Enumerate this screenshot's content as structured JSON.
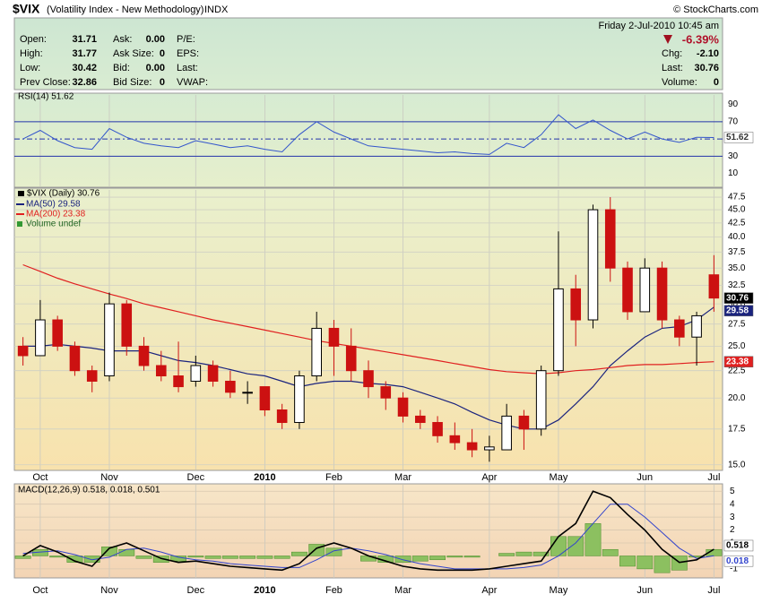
{
  "header": {
    "symbol": "$VIX",
    "name": "(Volatility Index - New Methodology)",
    "exchange": "INDX",
    "credit": "© StockCharts.com",
    "date": "Friday  2-Jul-2010  10:45 am",
    "change_pct": "-6.39%",
    "columns": [
      [
        {
          "label": "Open:",
          "value": "31.71"
        },
        {
          "label": "High:",
          "value": "31.77"
        },
        {
          "label": "Low:",
          "value": "30.42"
        },
        {
          "label": "Prev Close:",
          "value": "32.86"
        }
      ],
      [
        {
          "label": "Ask:",
          "value": "0.00"
        },
        {
          "label": "Ask Size:",
          "value": "0"
        },
        {
          "label": "Bid:",
          "value": "0.00"
        },
        {
          "label": "Bid Size:",
          "value": "0"
        }
      ],
      [
        {
          "label": "P/E:"
        },
        {
          "label": "EPS:"
        },
        {
          "label": "Last:"
        },
        {
          "label": "VWAP:"
        }
      ]
    ],
    "right": [
      {
        "label": "Chg:",
        "value": "-2.10"
      },
      {
        "label": "Last:",
        "value": "30.76"
      },
      {
        "label": "Volume:",
        "value": "0"
      }
    ]
  },
  "chart_data": [
    {
      "type": "line",
      "title": "RSI(14) 51.62",
      "ylim": [
        -5,
        101
      ],
      "yticks": [
        10,
        30,
        50,
        70,
        90
      ],
      "series": [
        {
          "color": "#3355cc",
          "values": [
            50,
            60,
            48,
            40,
            38,
            62,
            52,
            45,
            42,
            40,
            48,
            44,
            40,
            42,
            38,
            35,
            55,
            70,
            58,
            50,
            42,
            40,
            38,
            36,
            34,
            35,
            33,
            32,
            45,
            40,
            55,
            78,
            62,
            72,
            60,
            50,
            58,
            50,
            46,
            52,
            51.62
          ]
        }
      ]
    },
    {
      "type": "candlestick",
      "title": "$VIX (Daily) 30.76",
      "note": "Volume undef",
      "log_scale": true,
      "grid": true,
      "ylim": [
        14.7,
        49
      ],
      "yticks": [
        {
          "value": 15,
          "label": "15.0"
        },
        {
          "value": 17.5,
          "label": "17.5"
        },
        {
          "value": 20,
          "label": "20.0"
        },
        {
          "value": 22.5,
          "label": "22.5"
        },
        {
          "value": 25,
          "label": "25.0"
        },
        {
          "value": 27.5,
          "label": "27.5"
        },
        {
          "value": 30,
          "label": "30.0"
        },
        {
          "value": 32.5,
          "label": "32.5"
        },
        {
          "value": 35,
          "label": "35.0"
        },
        {
          "value": 37.5,
          "label": "37.5"
        },
        {
          "value": 40,
          "label": "40.0"
        },
        {
          "value": 42.5,
          "label": "42.5"
        },
        {
          "value": 45,
          "label": "45.0"
        },
        {
          "value": 47.5,
          "label": "47.5"
        }
      ],
      "categories": [
        null,
        "Oct",
        null,
        null,
        null,
        "Nov",
        null,
        null,
        null,
        null,
        "Dec",
        null,
        null,
        null,
        "2010",
        null,
        null,
        null,
        "Feb",
        null,
        null,
        null,
        "Mar",
        null,
        null,
        null,
        null,
        "Apr",
        null,
        null,
        null,
        "May",
        null,
        null,
        null,
        null,
        "Jun",
        null,
        null,
        null,
        "Jul"
      ],
      "open": [
        25,
        24,
        28,
        25,
        22.5,
        22,
        30,
        25,
        23,
        22,
        21.5,
        23,
        21.5,
        20.5,
        21,
        19,
        18,
        22,
        27,
        25,
        22.5,
        21,
        20,
        18.5,
        18,
        17,
        16.5,
        16,
        16,
        18.5,
        17.5,
        22.5,
        32,
        28,
        45,
        35,
        29,
        35,
        28,
        26,
        34
      ],
      "high": [
        26,
        30.5,
        28.5,
        25.5,
        23,
        31.5,
        30.5,
        26,
        24.5,
        25.5,
        24,
        23.5,
        22.5,
        21.5,
        21,
        19.5,
        22.5,
        29,
        28,
        27,
        23.5,
        21.5,
        20.5,
        19,
        18.5,
        18,
        17.5,
        17,
        19.5,
        19,
        23,
        41,
        34,
        46,
        47.5,
        36,
        36.5,
        36,
        28.5,
        29,
        37
      ],
      "low": [
        23,
        24,
        24.5,
        22,
        20.5,
        21.5,
        24,
        22.5,
        21.5,
        20.5,
        21,
        21,
        20,
        19.5,
        18.5,
        17.5,
        17.5,
        21.5,
        22,
        21.5,
        20,
        19,
        18,
        17.5,
        16.5,
        16,
        15.5,
        15.2,
        16,
        16,
        17,
        22,
        25,
        27,
        33,
        28,
        29,
        27,
        25,
        23,
        29
      ],
      "close": [
        24,
        28,
        25,
        22.5,
        21.5,
        30,
        25,
        23,
        22,
        21,
        23,
        21.5,
        20.5,
        20.5,
        19,
        18,
        22,
        27,
        25,
        22.5,
        21,
        20,
        18.5,
        18,
        17,
        16.5,
        16,
        16.2,
        18.5,
        17.5,
        22.5,
        32,
        28,
        45,
        35,
        29,
        35,
        28,
        26,
        28.5,
        30.76
      ],
      "series": [
        {
          "name": "MA(50) 29.58",
          "color": "#1a237e",
          "values": [
            25,
            25,
            25.2,
            25,
            24.8,
            24.5,
            24.5,
            24.5,
            24,
            23.5,
            23.3,
            23,
            22.6,
            22.2,
            22,
            21.5,
            21,
            21.3,
            21.5,
            21.5,
            21.3,
            21.2,
            21,
            20.5,
            20,
            19.5,
            18.8,
            18.2,
            17.8,
            17.5,
            17.5,
            18.2,
            19.5,
            21,
            23,
            24.5,
            26,
            27,
            27.2,
            28,
            29.58
          ]
        },
        {
          "name": "MA(200) 23.38",
          "color": "#e02020",
          "values": [
            35.5,
            34.5,
            33.5,
            32.7,
            32,
            31.3,
            30.7,
            30,
            29.5,
            29,
            28.5,
            28,
            27.6,
            27.2,
            26.8,
            26.4,
            26,
            25.6,
            25.3,
            25,
            24.7,
            24.4,
            24.1,
            23.8,
            23.5,
            23.2,
            22.9,
            22.6,
            22.4,
            22.3,
            22.2,
            22.3,
            22.5,
            22.6,
            22.8,
            23,
            23.1,
            23.1,
            23.2,
            23.3,
            23.38
          ]
        }
      ]
    },
    {
      "type": "macd",
      "title": "MACD(12,26,9) 0.518, 0.018, 0.501",
      "ylim": [
        -1.7,
        5.5
      ],
      "yticks": [
        -1,
        1,
        2,
        3,
        4,
        5
      ],
      "series": [
        {
          "color": "#000000",
          "values": [
            0,
            0.8,
            0.3,
            -0.4,
            -0.8,
            0.6,
            1.0,
            0.4,
            -0.2,
            -0.5,
            -0.4,
            -0.6,
            -0.8,
            -0.9,
            -1.0,
            -1.1,
            -0.6,
            0.6,
            1.0,
            0.6,
            0.0,
            -0.4,
            -0.8,
            -1.0,
            -1.1,
            -1.1,
            -1.1,
            -1.0,
            -0.8,
            -0.6,
            -0.4,
            1.5,
            2.5,
            5.0,
            4.5,
            3.2,
            2.0,
            0.5,
            -0.5,
            -0.3,
            0.518
          ]
        },
        {
          "color": "#3344cc",
          "values": [
            0.2,
            0.3,
            0.4,
            0.1,
            -0.3,
            -0.1,
            0.5,
            0.6,
            0.3,
            -0.1,
            -0.3,
            -0.4,
            -0.6,
            -0.7,
            -0.8,
            -0.9,
            -0.9,
            -0.3,
            0.4,
            0.6,
            0.4,
            0.1,
            -0.3,
            -0.6,
            -0.8,
            -1.0,
            -1.0,
            -1.0,
            -1.0,
            -0.9,
            -0.7,
            0.0,
            1.0,
            2.5,
            4.0,
            4.0,
            3.0,
            1.8,
            0.6,
            -0.2,
            0.018
          ]
        },
        {
          "color": "#66aa33",
          "values": [
            -0.2,
            0.5,
            -0.1,
            -0.5,
            -0.5,
            0.7,
            0.5,
            -0.2,
            -0.5,
            -0.4,
            -0.1,
            -0.2,
            -0.2,
            -0.2,
            -0.2,
            -0.2,
            0.3,
            0.9,
            0.6,
            0,
            -0.4,
            -0.5,
            -0.5,
            -0.4,
            -0.3,
            -0.1,
            -0.1,
            0,
            0.2,
            0.3,
            0.3,
            1.5,
            1.5,
            2.5,
            0.5,
            -0.8,
            -1.0,
            -1.3,
            -1.1,
            -0.1,
            0.501
          ]
        }
      ]
    }
  ]
}
